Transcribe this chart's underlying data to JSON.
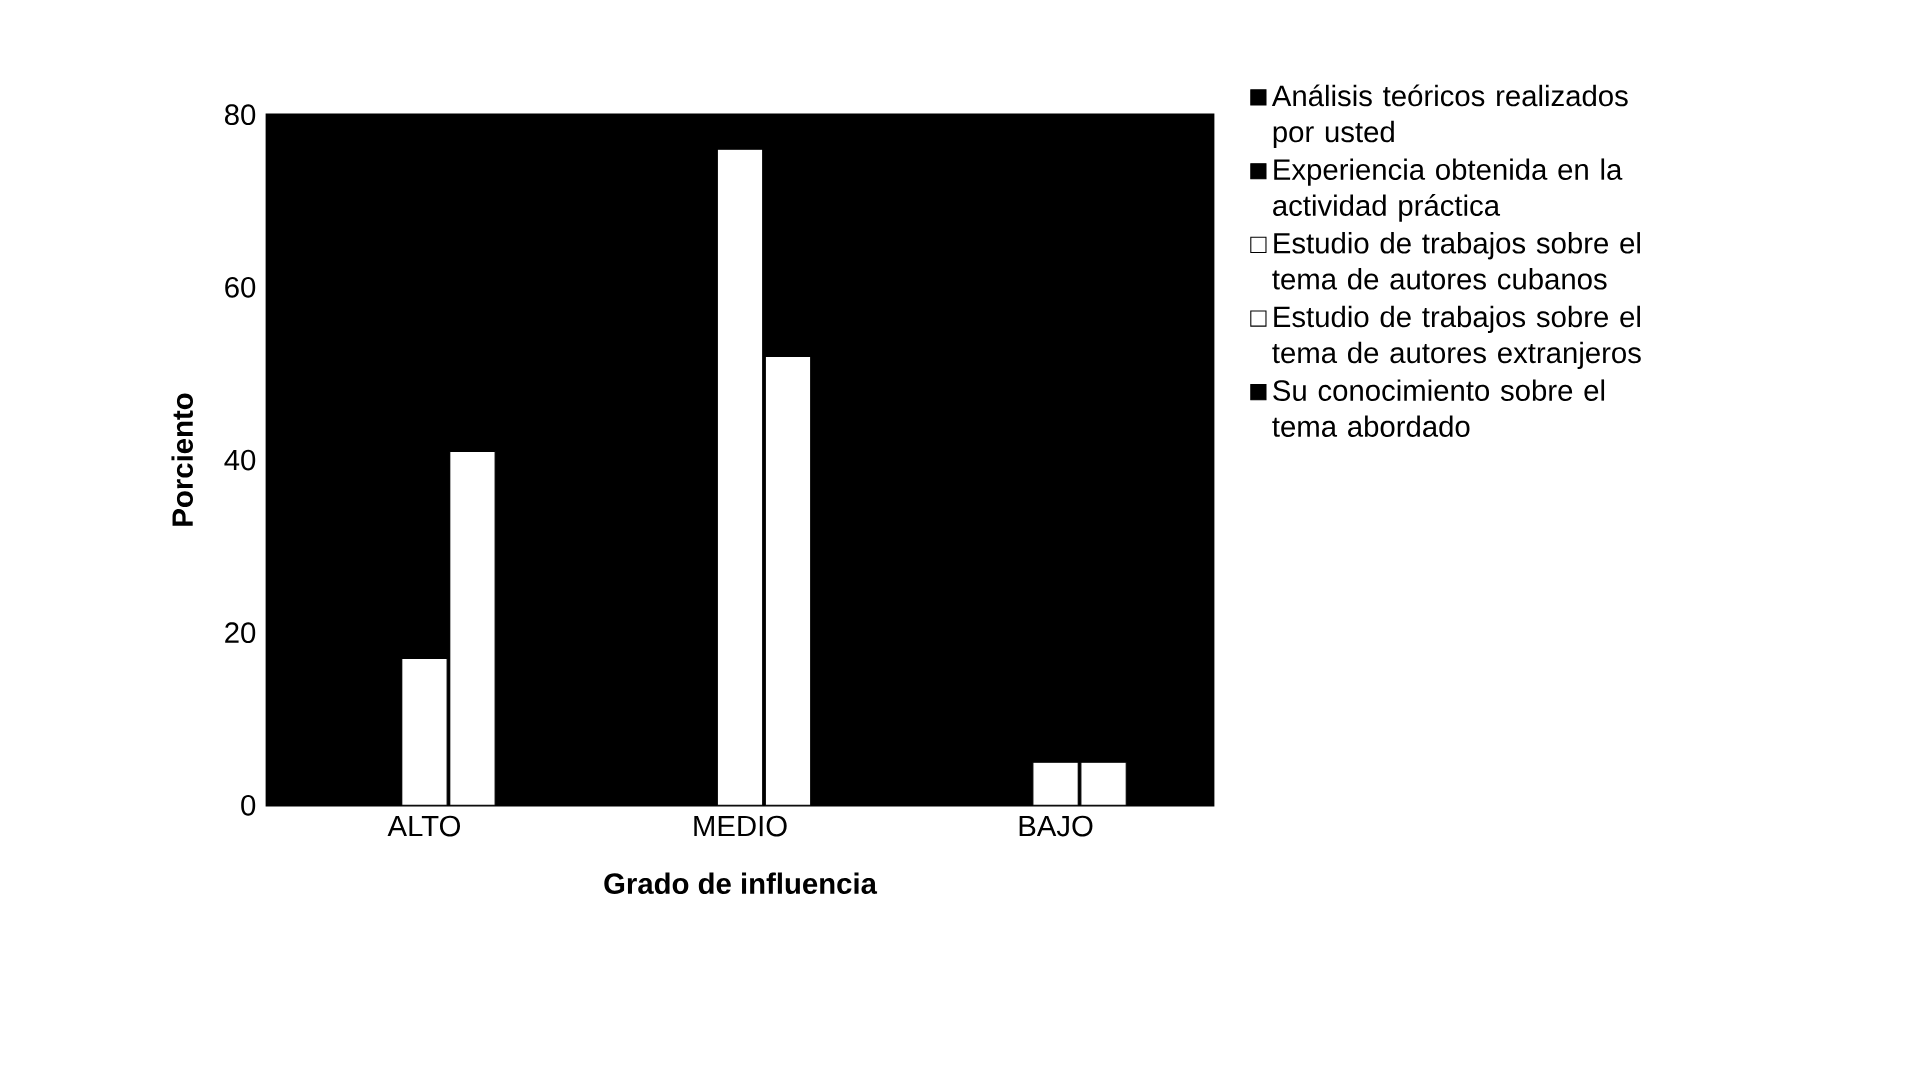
{
  "chart_data": {
    "type": "bar",
    "xlabel": "Grado de influencia",
    "ylabel": "Porciento",
    "categories": [
      "ALTO",
      "MEDIO",
      "BAJO"
    ],
    "series": [
      {
        "name": "Análisis teóricos realizados por usted",
        "color": "#000000",
        "values": [
          null,
          null,
          null
        ]
      },
      {
        "name": "Experiencia obtenida en la actividad práctica",
        "color": "#000000",
        "values": [
          null,
          null,
          null
        ]
      },
      {
        "name": "Estudio de trabajos sobre el tema de autores cubanos",
        "color": "#ffffff",
        "values": [
          17,
          76,
          5
        ]
      },
      {
        "name": "Estudio de trabajos sobre el tema de autores extranjeros",
        "color": "#ffffff",
        "values": [
          41,
          52,
          5
        ]
      },
      {
        "name": "Su conocimiento sobre el tema abordado",
        "color": "#000000",
        "values": [
          null,
          null,
          null
        ]
      }
    ],
    "ylim": [
      0,
      80
    ],
    "yticks": [
      0,
      20,
      40,
      60,
      80
    ],
    "legend": "right"
  }
}
